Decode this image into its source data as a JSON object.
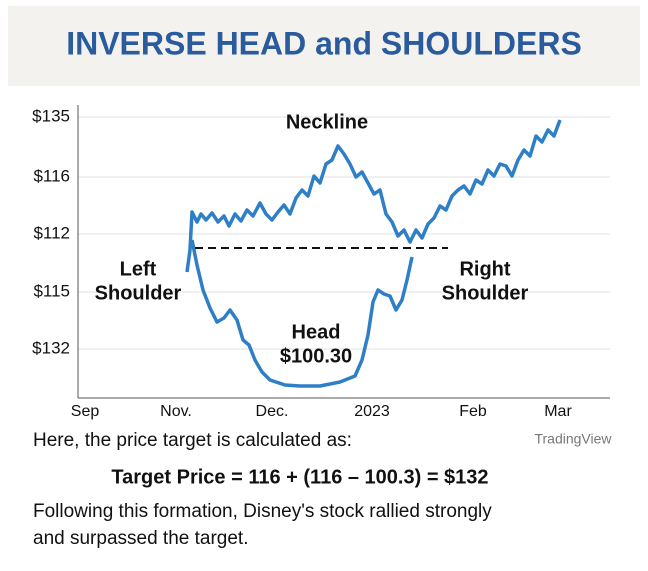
{
  "header": {
    "title": "INVERSE HEAD and SHOULDERS"
  },
  "chart": {
    "y_axis_labels": [
      "$135",
      "$116",
      "$112",
      "$115",
      "$132"
    ],
    "x_axis_labels": [
      "Sep",
      "Nov.",
      "Dec.",
      "2023",
      "Feb",
      "Mar"
    ],
    "annotations": {
      "neckline": "Neckline",
      "left_shoulder": [
        "Left",
        "Shoulder"
      ],
      "right_shoulder": [
        "Right",
        "Shoulder"
      ],
      "head": [
        "Head",
        "$100.30"
      ]
    },
    "source": "TradingView"
  },
  "text": {
    "intro": "Here, the price target is calculated as:",
    "formula": "Target Price = 116 + (116 – 100.3) = $132",
    "conclusion": [
      "Following this formation, Disney's stock rallied strongly",
      "and surpassed the target."
    ]
  }
}
